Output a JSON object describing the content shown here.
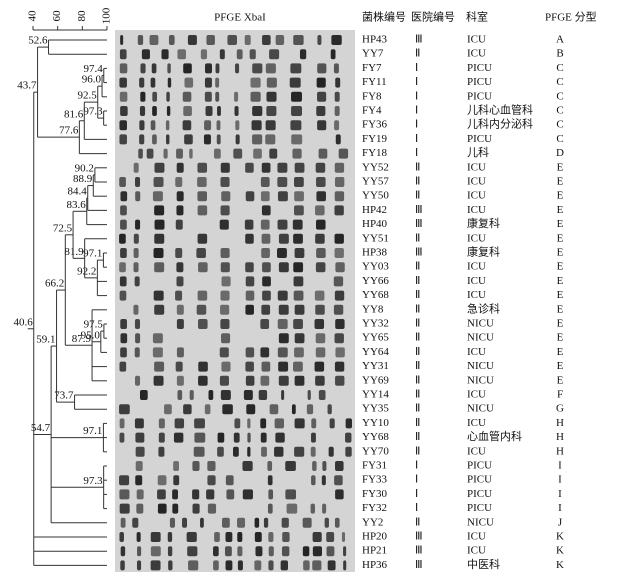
{
  "scale": {
    "ticks": [
      40,
      60,
      80,
      100
    ]
  },
  "gel_title": "PFGE XbaI",
  "columns": [
    "菌株编号",
    "医院编号",
    "科室",
    "PFGE 分型"
  ],
  "rows": [
    [
      "HP43",
      "Ⅲ",
      "ICU",
      "A"
    ],
    [
      "YY7",
      "Ⅱ",
      "ICU",
      "B"
    ],
    [
      "FY7",
      "Ⅰ",
      "PICU",
      "C"
    ],
    [
      "FY11",
      "Ⅰ",
      "PICU",
      "C"
    ],
    [
      "FY8",
      "Ⅰ",
      "PICU",
      "C"
    ],
    [
      "FY4",
      "Ⅰ",
      "儿科心血管科",
      "C"
    ],
    [
      "FY36",
      "Ⅰ",
      "儿科内分泌科",
      "C"
    ],
    [
      "FY19",
      "Ⅰ",
      "PICU",
      "C"
    ],
    [
      "FY18",
      "Ⅰ",
      "儿科",
      "D"
    ],
    [
      "YY52",
      "Ⅱ",
      "ICU",
      "E"
    ],
    [
      "YY57",
      "Ⅱ",
      "ICU",
      "E"
    ],
    [
      "YY50",
      "Ⅱ",
      "ICU",
      "E"
    ],
    [
      "HP42",
      "Ⅲ",
      "ICU",
      "E"
    ],
    [
      "HP40",
      "Ⅲ",
      "康复科",
      "E"
    ],
    [
      "YY51",
      "Ⅱ",
      "ICU",
      "E"
    ],
    [
      "HP38",
      "Ⅲ",
      "康复科",
      "E"
    ],
    [
      "YY03",
      "Ⅱ",
      "ICU",
      "E"
    ],
    [
      "YY66",
      "Ⅱ",
      "ICU",
      "E"
    ],
    [
      "YY68",
      "Ⅱ",
      "ICU",
      "E"
    ],
    [
      "YY8",
      "Ⅱ",
      "急诊科",
      "E"
    ],
    [
      "YY32",
      "Ⅱ",
      "NICU",
      "E"
    ],
    [
      "YY65",
      "Ⅱ",
      "NICU",
      "E"
    ],
    [
      "YY64",
      "Ⅱ",
      "ICU",
      "E"
    ],
    [
      "YY31",
      "Ⅱ",
      "NICU",
      "E"
    ],
    [
      "YY69",
      "Ⅱ",
      "NICU",
      "E"
    ],
    [
      "YY14",
      "Ⅱ",
      "ICU",
      "F"
    ],
    [
      "YY35",
      "Ⅱ",
      "NICU",
      "G"
    ],
    [
      "YY10",
      "Ⅱ",
      "ICU",
      "H"
    ],
    [
      "YY68",
      "Ⅱ",
      "心血管内科",
      "H"
    ],
    [
      "YY70",
      "Ⅱ",
      "ICU",
      "H"
    ],
    [
      "FY31",
      "Ⅰ",
      "PICU",
      "I"
    ],
    [
      "FY33",
      "Ⅰ",
      "PICU",
      "I"
    ],
    [
      "FY30",
      "Ⅰ",
      "PICU",
      "I"
    ],
    [
      "FY32",
      "Ⅰ",
      "PICU",
      "I"
    ],
    [
      "YY2",
      "Ⅱ",
      "NICU",
      "J"
    ],
    [
      "HP20",
      "Ⅲ",
      "ICU",
      "K"
    ],
    [
      "HP21",
      "Ⅲ",
      "ICU",
      "K"
    ],
    [
      "HP36",
      "Ⅲ",
      "中医科",
      "K"
    ]
  ],
  "dendrogram": {
    "nodes": [
      52.6,
      97.4,
      {
        "value": 96,
        "label": "96.0"
      },
      92.5,
      81.6,
      97.3,
      77.6,
      90.2,
      88.9,
      72.5,
      84.4,
      83.6,
      43.7,
      81.9,
      97.1,
      92.2,
      66.2,
      87.9,
      97.5,
      {
        "value": 95,
        "label": "95.0"
      },
      59.1,
      40.6,
      73.7,
      54.7,
      97.1,
      97.3
    ]
  }
}
